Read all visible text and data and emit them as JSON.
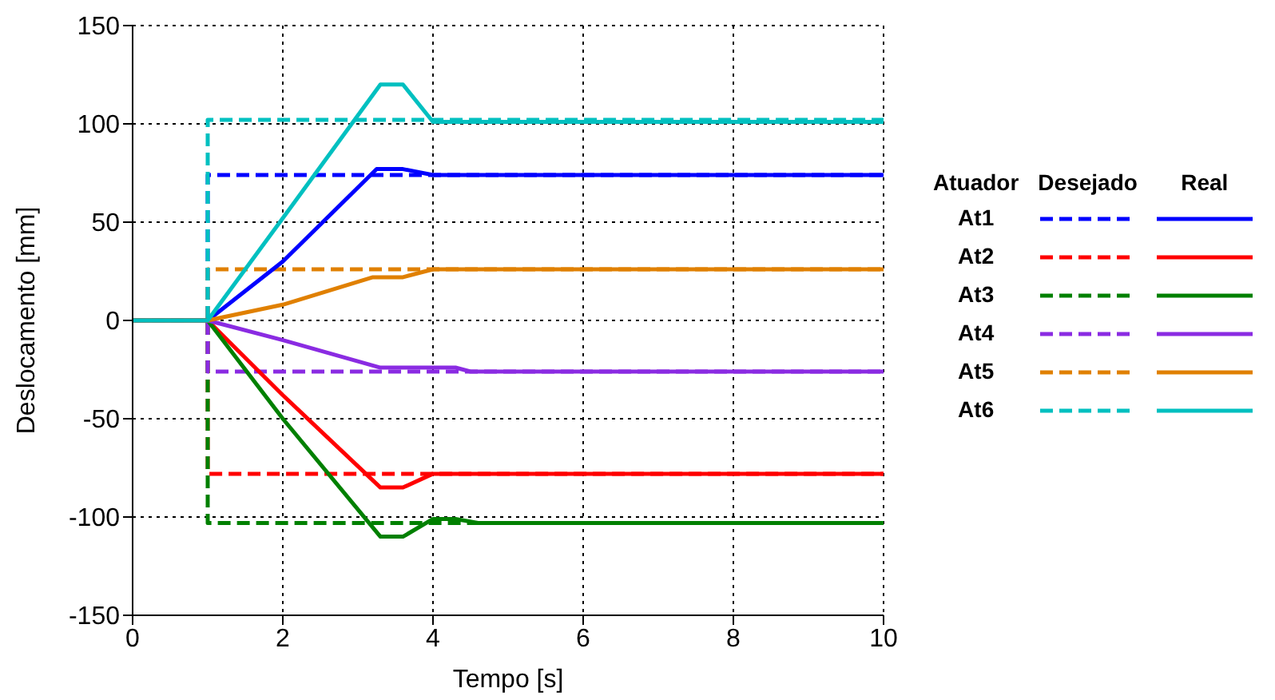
{
  "chart_data": {
    "type": "line",
    "xlabel": "Tempo [s]",
    "ylabel": "Deslocamento [mm]",
    "legend_title": "Atuador",
    "annotations": [
      "Desejado",
      "Real"
    ],
    "xlim": [
      0,
      10
    ],
    "xticks": [
      0,
      2,
      4,
      6,
      8,
      10
    ],
    "ylim": [
      -150,
      150
    ],
    "yticks": [
      -150,
      -100,
      -50,
      0,
      50,
      100,
      150
    ],
    "grid": true,
    "legend": "right",
    "marker": "none",
    "series": [
      {
        "name": "At1",
        "color": "#0000ff",
        "line_style": "dashed",
        "x": [
          0,
          1,
          1,
          10
        ],
        "values": [
          0,
          0,
          74,
          74
        ]
      },
      {
        "name": "At2",
        "color": "#ff0000",
        "line_style": "dashed",
        "x": [
          0,
          1,
          1,
          10
        ],
        "values": [
          0,
          0,
          -78,
          -78
        ]
      },
      {
        "name": "At3",
        "color": "#008000",
        "line_style": "dashed",
        "x": [
          0,
          1,
          1,
          10
        ],
        "values": [
          0,
          0,
          -103,
          -103
        ]
      },
      {
        "name": "At4",
        "color": "#8a2be2",
        "line_style": "dashed",
        "x": [
          0,
          1,
          1,
          10
        ],
        "values": [
          0,
          0,
          -26,
          -26
        ]
      },
      {
        "name": "At5",
        "color": "#e08000",
        "line_style": "dashed",
        "x": [
          0,
          1,
          1,
          10
        ],
        "values": [
          0,
          0,
          26,
          26
        ]
      },
      {
        "name": "At6",
        "color": "#00c0c0",
        "line_style": "dashed",
        "x": [
          0,
          1,
          1,
          10
        ],
        "values": [
          0,
          0,
          102,
          102
        ]
      },
      {
        "color": "#0000ff",
        "line_style": "solid",
        "x": [
          0,
          1,
          2,
          3.25,
          3.6,
          4,
          10
        ],
        "values": [
          0,
          0,
          30,
          77,
          77,
          74,
          74
        ]
      },
      {
        "color": "#ff0000",
        "line_style": "solid",
        "x": [
          0,
          1,
          2,
          3.3,
          3.6,
          4,
          10
        ],
        "values": [
          0,
          0,
          -38,
          -85,
          -85,
          -78,
          -78
        ]
      },
      {
        "color": "#008000",
        "line_style": "solid",
        "x": [
          0,
          1,
          2,
          3.3,
          3.6,
          4,
          4.3,
          4.6,
          10
        ],
        "values": [
          0,
          0,
          -50,
          -110,
          -110,
          -101,
          -101,
          -103,
          -103
        ]
      },
      {
        "color": "#8a2be2",
        "line_style": "solid",
        "x": [
          0,
          1,
          2,
          3.3,
          4.3,
          4.5,
          10
        ],
        "values": [
          0,
          0,
          -10,
          -24,
          -24,
          -26,
          -26
        ]
      },
      {
        "color": "#e08000",
        "line_style": "solid",
        "x": [
          0,
          1,
          2,
          3.2,
          3.6,
          4,
          10
        ],
        "values": [
          0,
          0,
          8,
          22,
          22,
          26,
          26
        ]
      },
      {
        "color": "#00c0c0",
        "line_style": "solid",
        "x": [
          0,
          1,
          2,
          3.3,
          3.6,
          4,
          10
        ],
        "values": [
          0,
          0,
          52,
          120,
          120,
          101,
          101
        ]
      }
    ]
  }
}
